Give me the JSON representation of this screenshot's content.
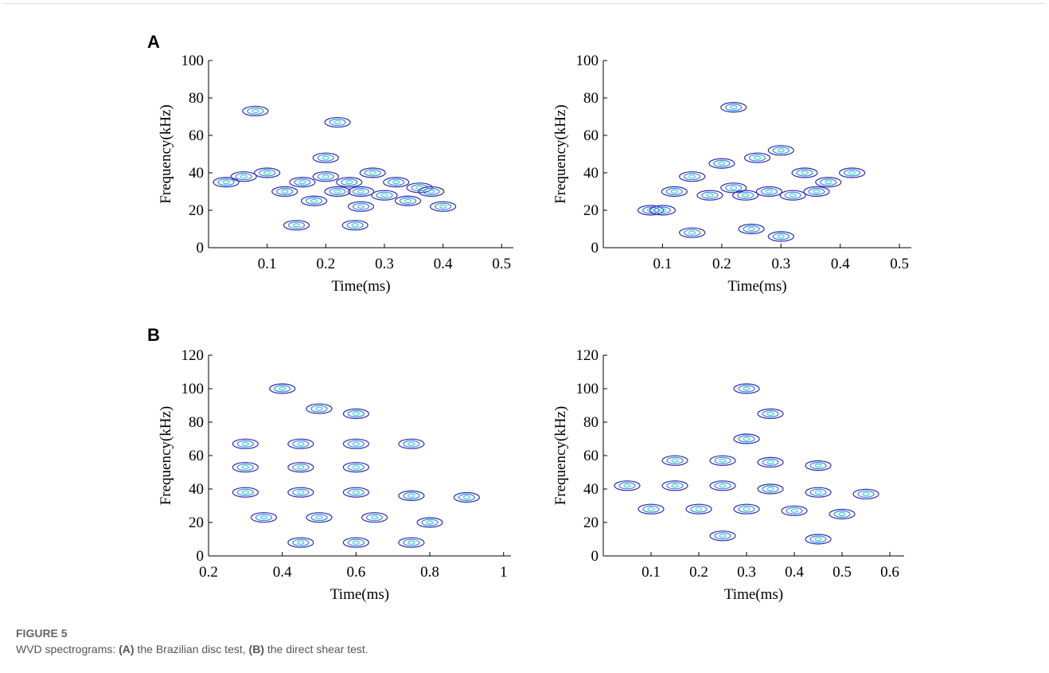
{
  "panels": [
    {
      "label": "A"
    },
    {
      "label": "B"
    }
  ],
  "chart_data": [
    {
      "type": "contour",
      "xlabel": "Time(ms)",
      "ylabel": "Frequency(kHz)",
      "xlim": [
        0,
        0.52
      ],
      "xticks": [
        0.1,
        0.2,
        0.3,
        0.4,
        0.5
      ],
      "ylim": [
        0,
        100
      ],
      "yticks": [
        0,
        20,
        40,
        60,
        80,
        100
      ],
      "colors": [
        "#2a2ab8",
        "#3c82e0",
        "#40d0c0"
      ],
      "x": [
        0.03,
        0.06,
        0.1,
        0.13,
        0.16,
        0.18,
        0.2,
        0.22,
        0.24,
        0.26,
        0.26,
        0.28,
        0.3,
        0.32,
        0.34,
        0.36,
        0.38,
        0.4,
        0.2,
        0.25,
        0.15,
        0.22,
        0.08
      ],
      "y": [
        35,
        38,
        40,
        30,
        35,
        25,
        38,
        30,
        35,
        22,
        30,
        40,
        28,
        35,
        25,
        32,
        30,
        22,
        48,
        12,
        12,
        67,
        73
      ]
    },
    {
      "type": "contour",
      "xlabel": "Time(ms)",
      "ylabel": "Frequency(kHz)",
      "xlim": [
        0,
        0.52
      ],
      "xticks": [
        0.1,
        0.2,
        0.3,
        0.4,
        0.5
      ],
      "ylim": [
        0,
        100
      ],
      "yticks": [
        0,
        20,
        40,
        60,
        80,
        100
      ],
      "colors": [
        "#2a2ab8",
        "#3c82e0",
        "#40d0c0"
      ],
      "x": [
        0.08,
        0.12,
        0.15,
        0.18,
        0.2,
        0.22,
        0.24,
        0.26,
        0.28,
        0.3,
        0.32,
        0.34,
        0.36,
        0.38,
        0.42,
        0.25,
        0.3,
        0.15,
        0.22,
        0.1
      ],
      "y": [
        20,
        30,
        38,
        28,
        45,
        32,
        28,
        48,
        30,
        52,
        28,
        40,
        30,
        35,
        40,
        10,
        6,
        8,
        75,
        20
      ]
    },
    {
      "type": "contour",
      "xlabel": "Time(ms)",
      "ylabel": "Frequency(kHz)",
      "xlim": [
        0.2,
        1.02
      ],
      "xticks": [
        0.2,
        0.4,
        0.6,
        0.8,
        1
      ],
      "ylim": [
        0,
        120
      ],
      "yticks": [
        0,
        20,
        40,
        60,
        80,
        100,
        120
      ],
      "colors": [
        "#2a2ab8",
        "#3c82e0",
        "#40d0c0"
      ],
      "x": [
        0.3,
        0.45,
        0.6,
        0.75,
        0.3,
        0.45,
        0.6,
        0.3,
        0.45,
        0.6,
        0.75,
        0.9,
        0.35,
        0.5,
        0.65,
        0.8,
        0.45,
        0.6,
        0.75,
        0.5,
        0.6,
        0.4
      ],
      "y": [
        67,
        67,
        67,
        67,
        53,
        53,
        53,
        38,
        38,
        38,
        36,
        35,
        23,
        23,
        23,
        20,
        8,
        8,
        8,
        88,
        85,
        100
      ]
    },
    {
      "type": "contour",
      "xlabel": "Time(ms)",
      "ylabel": "Frequency(kHz)",
      "xlim": [
        0,
        0.63
      ],
      "xticks": [
        0.1,
        0.2,
        0.3,
        0.4,
        0.5,
        0.6
      ],
      "ylim": [
        0,
        120
      ],
      "yticks": [
        0,
        20,
        40,
        60,
        80,
        100,
        120
      ],
      "colors": [
        "#2a2ab8",
        "#3c82e0",
        "#40d0c0"
      ],
      "x": [
        0.05,
        0.15,
        0.25,
        0.35,
        0.45,
        0.55,
        0.15,
        0.25,
        0.35,
        0.45,
        0.1,
        0.2,
        0.3,
        0.4,
        0.5,
        0.3,
        0.35,
        0.3,
        0.25,
        0.45
      ],
      "y": [
        42,
        42,
        42,
        40,
        38,
        37,
        57,
        57,
        56,
        54,
        28,
        28,
        28,
        27,
        25,
        70,
        85,
        100,
        12,
        10
      ]
    }
  ],
  "caption": {
    "figure": "FIGURE 5",
    "parts": [
      "WVD spectrograms: ",
      "(A)",
      " the Brazilian disc test, ",
      "(B)",
      " the direct shear test."
    ]
  }
}
